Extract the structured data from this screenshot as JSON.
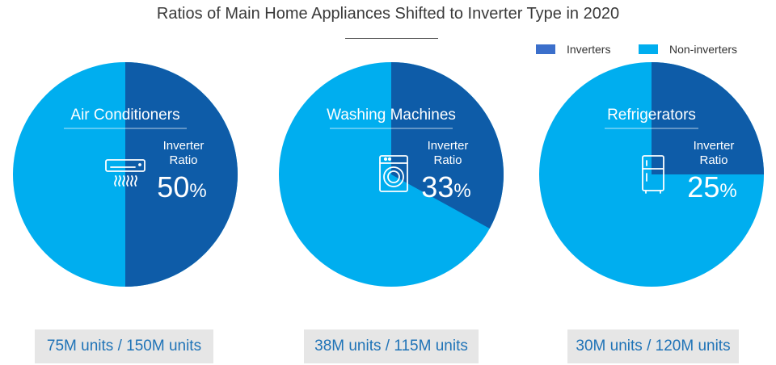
{
  "colors": {
    "inverter": "#0e5ca8",
    "non_inverter": "#00aeef",
    "text_white": "#ffffff",
    "footer_bg": "#e6e6e6",
    "footer_text": "#1f73b7",
    "legend_inverter_swatch": "#3b6fcb"
  },
  "chart_data": {
    "type": "pie",
    "title": "Ratios of Main Home Appliances Shifted to Inverter Type in 2020",
    "legend": {
      "placement": "top-right",
      "entries": [
        {
          "label": "Inverters",
          "color": "#3b6fcb"
        },
        {
          "label": "Non-inverters",
          "color": "#00aeef"
        }
      ]
    },
    "charts": [
      {
        "name": "Air Conditioners",
        "icon": "air-conditioner-icon",
        "ratio_label": "Inverter Ratio",
        "percent_value": "50",
        "percent_unit": "%",
        "slices": [
          {
            "label": "Inverters",
            "value": 50
          },
          {
            "label": "Non-inverters",
            "value": 50
          }
        ],
        "units_text": "75M units / 150M units"
      },
      {
        "name": "Washing Machines",
        "icon": "washing-machine-icon",
        "ratio_label": "Inverter Ratio",
        "percent_value": "33",
        "percent_unit": "%",
        "slices": [
          {
            "label": "Inverters",
            "value": 33
          },
          {
            "label": "Non-inverters",
            "value": 67
          }
        ],
        "units_text": "38M units / 115M units"
      },
      {
        "name": "Refrigerators",
        "icon": "refrigerator-icon",
        "ratio_label": "Inverter Ratio",
        "percent_value": "25",
        "percent_unit": "%",
        "slices": [
          {
            "label": "Inverters",
            "value": 25
          },
          {
            "label": "Non-inverters",
            "value": 75
          }
        ],
        "units_text": "30M units / 120M units"
      }
    ]
  }
}
